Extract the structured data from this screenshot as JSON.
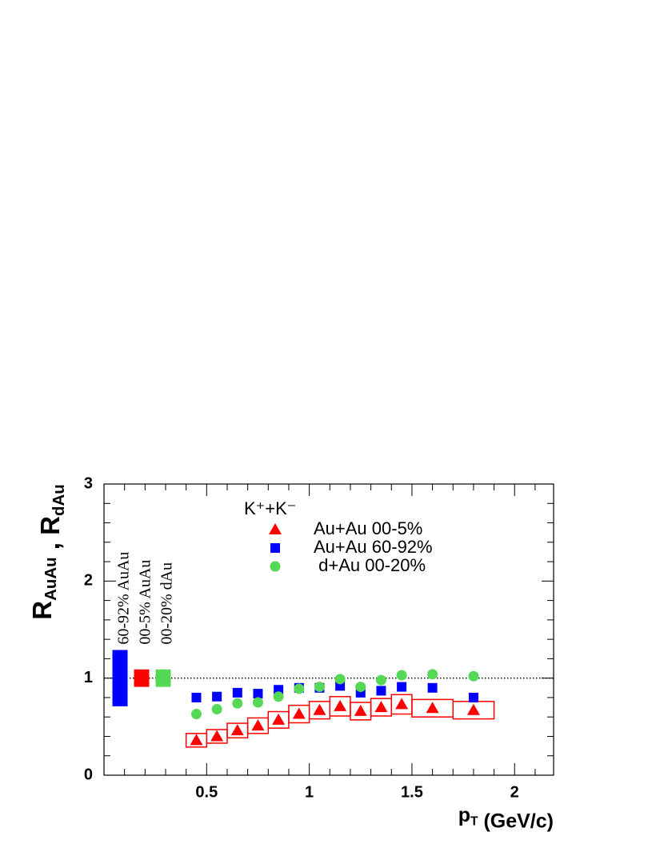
{
  "chart_data": {
    "type": "scatter",
    "xlim": [
      0,
      2.19
    ],
    "ylim": [
      0,
      3
    ],
    "xticks": [
      0.5,
      1,
      1.5,
      2
    ],
    "yticks": [
      0,
      1,
      2,
      3
    ],
    "xminorticks": [
      0.1,
      0.2,
      0.3,
      0.4,
      0.6,
      0.7,
      0.8,
      0.9,
      1.1,
      1.2,
      1.3,
      1.4,
      1.6,
      1.7,
      1.8,
      1.9,
      2.1
    ],
    "yminorticks": [
      0.2,
      0.4,
      0.6,
      0.8,
      1.2,
      1.4,
      1.6,
      1.8,
      2.2,
      2.4,
      2.6,
      2.8
    ],
    "xlabel": [
      {
        "text": "p",
        "sub": "T"
      },
      {
        "text": " (GeV/c)"
      }
    ],
    "ylabel": [
      {
        "text": "R",
        "sub": "AuAu"
      },
      {
        "text": " , R",
        "sub": "dAu"
      }
    ],
    "reference_line": 1,
    "legend_title": "K⁺+K⁻",
    "x": [
      0.45,
      0.55,
      0.65,
      0.75,
      0.85,
      0.95,
      1.05,
      1.15,
      1.25,
      1.35,
      1.45,
      1.6,
      1.8
    ],
    "series": [
      {
        "name": "Au+Au 00-5%",
        "color": "#ff0000",
        "marker": "triangle",
        "values": [
          0.36,
          0.4,
          0.46,
          0.51,
          0.57,
          0.63,
          0.67,
          0.71,
          0.66,
          0.7,
          0.73,
          0.69,
          0.67
        ],
        "sys": [
          0.07,
          0.07,
          0.075,
          0.08,
          0.085,
          0.09,
          0.09,
          0.1,
          0.09,
          0.09,
          0.1,
          0.09,
          0.09
        ],
        "sys_xedges": [
          0.4,
          0.5,
          0.6,
          0.7,
          0.8,
          0.9,
          1.0,
          1.1,
          1.2,
          1.3,
          1.4,
          1.5,
          1.7,
          1.9
        ]
      },
      {
        "name": "Au+Au 60-92%",
        "color": "#0000ff",
        "marker": "square",
        "values": [
          0.8,
          0.81,
          0.85,
          0.84,
          0.88,
          0.9,
          0.9,
          0.92,
          0.85,
          0.87,
          0.91,
          0.9,
          0.8
        ]
      },
      {
        "name": " d+Au 00-20%",
        "color": "#55d855",
        "marker": "circle",
        "values": [
          0.63,
          0.68,
          0.74,
          0.75,
          0.81,
          0.89,
          0.91,
          0.99,
          0.91,
          0.98,
          1.03,
          1.04,
          1.02
        ]
      }
    ],
    "normalization": [
      {
        "label": "60-92% AuAu",
        "color": "#0000ff",
        "error": 0.29
      },
      {
        "label": "00-5% AuAu",
        "color": "#ff0000",
        "error": 0.09
      },
      {
        "label": "00-20% dAu",
        "color": "#55d855",
        "error": 0.09
      }
    ]
  }
}
